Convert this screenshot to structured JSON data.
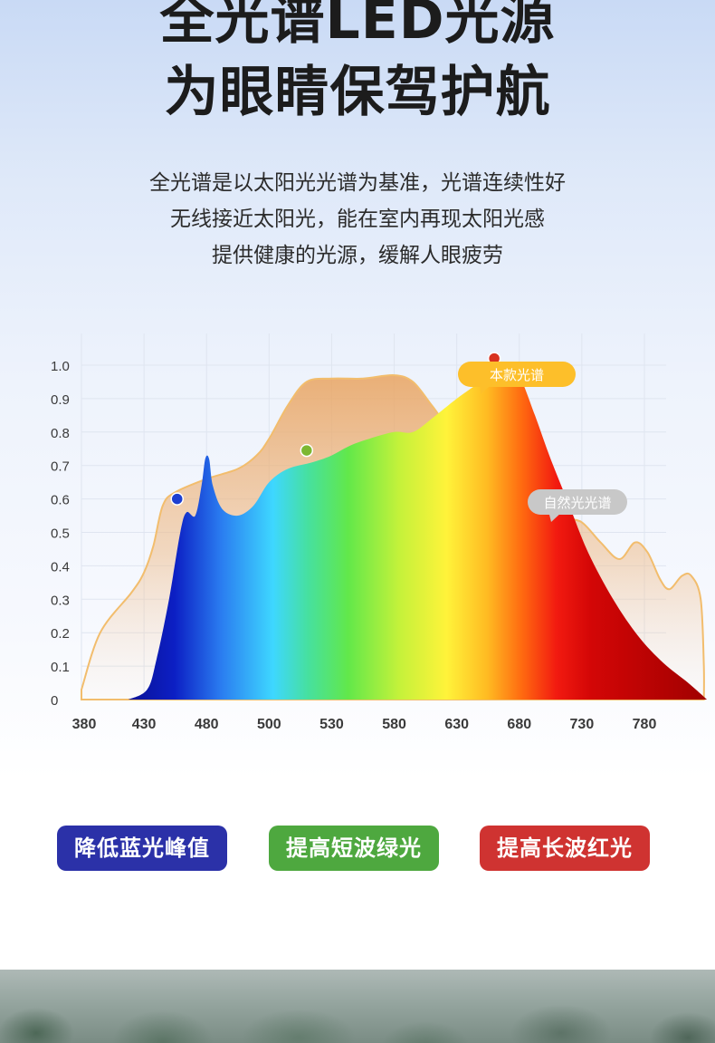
{
  "header": {
    "title_line1": "全光谱LED光源",
    "title_line2": "为眼睛保驾护航",
    "description": [
      "全光谱是以太阳光光谱为基准，光谱连续性好",
      "无线接近太阳光，能在室内再现太阳光感",
      "提供健康的光源，缓解人眼疲劳"
    ]
  },
  "chart_data": {
    "type": "area",
    "title": "",
    "xlabel": "",
    "ylabel": "",
    "x_ticks": [
      380,
      430,
      480,
      500,
      530,
      580,
      630,
      680,
      730,
      780
    ],
    "y_ticks": [
      "0",
      "0.1",
      "0.2",
      "0.3",
      "0.4",
      "0.5",
      "0.6",
      "0.7",
      "0.8",
      "0.9",
      "1.0"
    ],
    "ylim": [
      0,
      1.0
    ],
    "grid": true,
    "series": [
      {
        "name": "自然光光谱",
        "color": "#e9a76a",
        "points": [
          [
            0,
            0.03
          ],
          [
            0.3,
            0.2
          ],
          [
            0.8,
            0.32
          ],
          [
            1,
            0.38
          ],
          [
            1.15,
            0.46
          ],
          [
            1.3,
            0.58
          ],
          [
            1.5,
            0.62
          ],
          [
            2,
            0.66
          ],
          [
            2.5,
            0.69
          ],
          [
            2.8,
            0.73
          ],
          [
            3,
            0.78
          ],
          [
            3.3,
            0.88
          ],
          [
            3.6,
            0.95
          ],
          [
            4,
            0.96
          ],
          [
            4.5,
            0.96
          ],
          [
            5,
            0.97
          ],
          [
            5.3,
            0.95
          ],
          [
            5.6,
            0.88
          ],
          [
            5.85,
            0.82
          ],
          [
            6.1,
            0.79
          ],
          [
            6.4,
            0.77
          ],
          [
            6.8,
            0.76
          ],
          [
            7,
            0.74
          ],
          [
            7.25,
            0.7
          ],
          [
            7.45,
            0.63
          ],
          [
            7.7,
            0.55
          ],
          [
            8,
            0.53
          ],
          [
            8.3,
            0.47
          ],
          [
            8.6,
            0.42
          ],
          [
            8.85,
            0.47
          ],
          [
            9.05,
            0.44
          ],
          [
            9.25,
            0.36
          ],
          [
            9.4,
            0.33
          ],
          [
            9.6,
            0.37
          ],
          [
            9.75,
            0.37
          ],
          [
            9.9,
            0.3
          ],
          [
            9.95,
            0.1
          ],
          [
            9.95,
            0
          ]
        ]
      },
      {
        "name": "本款光谱",
        "color_stops": [
          "#0a1297",
          "#0c1fc4",
          "#2a7cf0",
          "#3ed7ff",
          "#46e0a0",
          "#62e84a",
          "#c6f23a",
          "#fff33a",
          "#ffbb22",
          "#ff6a10",
          "#f21a10",
          "#d30606",
          "#a00000"
        ],
        "points": [
          [
            0.75,
            0
          ],
          [
            1.05,
            0.03
          ],
          [
            1.2,
            0.12
          ],
          [
            1.4,
            0.3
          ],
          [
            1.58,
            0.5
          ],
          [
            1.68,
            0.56
          ],
          [
            1.82,
            0.55
          ],
          [
            1.92,
            0.64
          ],
          [
            1.98,
            0.72
          ],
          [
            2.04,
            0.72
          ],
          [
            2.1,
            0.64
          ],
          [
            2.25,
            0.57
          ],
          [
            2.5,
            0.55
          ],
          [
            2.75,
            0.58
          ],
          [
            3,
            0.65
          ],
          [
            3.3,
            0.69
          ],
          [
            3.7,
            0.71
          ],
          [
            4,
            0.73
          ],
          [
            4.3,
            0.76
          ],
          [
            4.6,
            0.78
          ],
          [
            5,
            0.8
          ],
          [
            5.3,
            0.8
          ],
          [
            5.6,
            0.84
          ],
          [
            6,
            0.9
          ],
          [
            6.3,
            0.94
          ],
          [
            6.6,
            0.98
          ],
          [
            6.85,
            0.99
          ],
          [
            7,
            0.97
          ],
          [
            7.25,
            0.85
          ],
          [
            7.5,
            0.72
          ],
          [
            7.8,
            0.58
          ],
          [
            8.1,
            0.44
          ],
          [
            8.5,
            0.3
          ],
          [
            8.9,
            0.19
          ],
          [
            9.3,
            0.11
          ],
          [
            9.7,
            0.05
          ],
          [
            10,
            0.0
          ]
        ]
      }
    ],
    "markers": [
      {
        "x": 1.53,
        "y": 0.6,
        "color": "#1d3fd1"
      },
      {
        "x": 3.6,
        "y": 0.745,
        "color": "#7cb732"
      },
      {
        "x": 6.6,
        "y": 1.02,
        "color": "#d8321f"
      }
    ],
    "callouts": [
      {
        "text": "本款光谱",
        "bg": "#fdbf2a"
      },
      {
        "text": "自然光光谱",
        "bg": "#c8c8c8"
      }
    ]
  },
  "badges": [
    {
      "text": "降低蓝光峰值",
      "bg": "#2b31a8"
    },
    {
      "text": "提高短波绿光",
      "bg": "#4ea83f"
    },
    {
      "text": "提高长波红光",
      "bg": "#cf3331"
    }
  ]
}
